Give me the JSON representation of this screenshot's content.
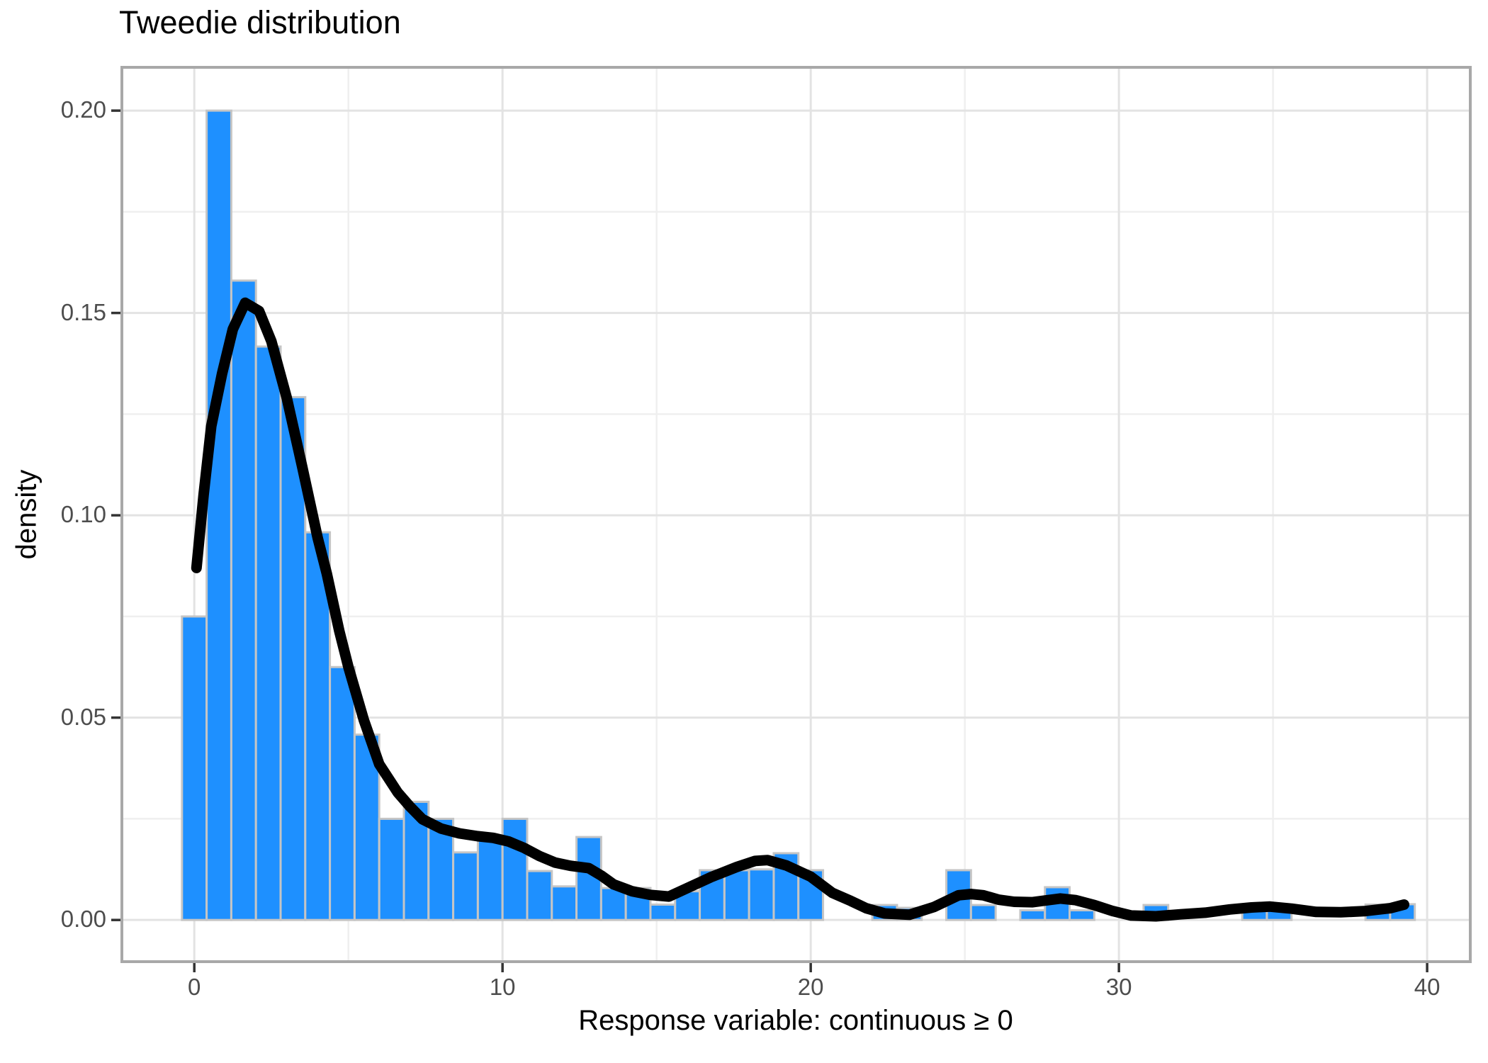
{
  "title": "Tweedie distribution",
  "x_axis": {
    "title": "Response variable: continuous ≥ 0",
    "tick_labels": [
      "0",
      "10",
      "20",
      "30",
      "40"
    ],
    "tick_values": [
      0,
      10,
      20,
      30,
      40
    ],
    "minor_tick_values": [
      5,
      15,
      25,
      35
    ]
  },
  "y_axis": {
    "title": "density",
    "tick_labels": [
      "0.00",
      "0.05",
      "0.10",
      "0.15",
      "0.20"
    ],
    "tick_values": [
      0,
      0.05,
      0.1,
      0.15,
      0.2
    ],
    "minor_tick_values": [
      0.025,
      0.075,
      0.125,
      0.175
    ]
  },
  "colors": {
    "bar_fill": "#1E90FF",
    "bar_stroke": "#C5C5C5",
    "curve": "#000000",
    "grid_major": "#E3E3E3",
    "grid_minor": "#EFEFEF",
    "panel_border": "#A8A8A8",
    "tick_mark": "#333333",
    "tick_label": "#4D4D4D",
    "background": "#FFFFFF"
  },
  "chart_data": {
    "type": "bar",
    "subtype": "histogram_with_density_overlay",
    "title": "Tweedie distribution",
    "xlabel": "Response variable: continuous ≥ 0",
    "ylabel": "density",
    "xlim": [
      -2.35,
      41.4
    ],
    "ylim": [
      -0.0103,
      0.2107
    ],
    "grid": true,
    "legend": false,
    "bin_width": 0.8,
    "bars_note": "pairs of [bin_center, density]; bins not listed have density 0",
    "bars": [
      [
        0.0,
        0.075
      ],
      [
        0.8,
        0.2
      ],
      [
        1.6,
        0.158
      ],
      [
        2.4,
        0.1417
      ],
      [
        3.2,
        0.1292
      ],
      [
        4.0,
        0.0958
      ],
      [
        4.8,
        0.0625
      ],
      [
        5.6,
        0.0458
      ],
      [
        6.4,
        0.025
      ],
      [
        7.2,
        0.0292
      ],
      [
        8.0,
        0.025
      ],
      [
        8.8,
        0.0167
      ],
      [
        9.6,
        0.0196
      ],
      [
        10.4,
        0.025
      ],
      [
        11.2,
        0.0121
      ],
      [
        12.0,
        0.0083
      ],
      [
        12.8,
        0.0205
      ],
      [
        13.6,
        0.0079
      ],
      [
        14.4,
        0.0079
      ],
      [
        15.2,
        0.0038
      ],
      [
        16.0,
        0.0071
      ],
      [
        16.8,
        0.0123
      ],
      [
        17.6,
        0.0123
      ],
      [
        18.4,
        0.0125
      ],
      [
        19.2,
        0.0165
      ],
      [
        20.0,
        0.0123
      ],
      [
        22.4,
        0.0037
      ],
      [
        23.2,
        0.003
      ],
      [
        24.8,
        0.0123
      ],
      [
        25.6,
        0.0037
      ],
      [
        27.2,
        0.0024
      ],
      [
        28.0,
        0.0081
      ],
      [
        28.8,
        0.0024
      ],
      [
        31.2,
        0.0037
      ],
      [
        34.4,
        0.0037
      ],
      [
        35.2,
        0.0037
      ],
      [
        38.4,
        0.0038
      ],
      [
        39.2,
        0.0039
      ]
    ],
    "density_curve": [
      [
        0.07,
        0.087
      ],
      [
        0.3,
        0.105
      ],
      [
        0.55,
        0.122
      ],
      [
        0.9,
        0.135
      ],
      [
        1.25,
        0.146
      ],
      [
        1.65,
        0.1525
      ],
      [
        2.1,
        0.1505
      ],
      [
        2.5,
        0.143
      ],
      [
        3.0,
        0.129
      ],
      [
        3.5,
        0.112
      ],
      [
        4.0,
        0.0945
      ],
      [
        4.3,
        0.0855
      ],
      [
        4.7,
        0.0715
      ],
      [
        5.0,
        0.0625
      ],
      [
        5.5,
        0.0494
      ],
      [
        6.0,
        0.0385
      ],
      [
        6.6,
        0.0315
      ],
      [
        7.0,
        0.028
      ],
      [
        7.4,
        0.0249
      ],
      [
        8.0,
        0.0226
      ],
      [
        8.6,
        0.0214
      ],
      [
        9.2,
        0.0207
      ],
      [
        9.7,
        0.0203
      ],
      [
        10.2,
        0.0194
      ],
      [
        10.7,
        0.0178
      ],
      [
        11.2,
        0.0158
      ],
      [
        11.7,
        0.0142
      ],
      [
        12.2,
        0.0134
      ],
      [
        12.8,
        0.0128
      ],
      [
        13.2,
        0.011
      ],
      [
        13.6,
        0.0088
      ],
      [
        14.2,
        0.0071
      ],
      [
        14.8,
        0.0062
      ],
      [
        15.4,
        0.0058
      ],
      [
        16.0,
        0.0079
      ],
      [
        16.8,
        0.0107
      ],
      [
        17.6,
        0.0131
      ],
      [
        18.2,
        0.0146
      ],
      [
        18.6,
        0.0148
      ],
      [
        19.2,
        0.0135
      ],
      [
        20.0,
        0.0107
      ],
      [
        20.7,
        0.0067
      ],
      [
        21.3,
        0.0047
      ],
      [
        21.8,
        0.0029
      ],
      [
        22.4,
        0.0016
      ],
      [
        23.2,
        0.0013
      ],
      [
        24.0,
        0.0032
      ],
      [
        24.8,
        0.0061
      ],
      [
        25.2,
        0.0064
      ],
      [
        25.6,
        0.0061
      ],
      [
        26.1,
        0.005
      ],
      [
        26.6,
        0.0045
      ],
      [
        27.2,
        0.0044
      ],
      [
        27.7,
        0.0049
      ],
      [
        28.1,
        0.0053
      ],
      [
        28.6,
        0.0049
      ],
      [
        29.2,
        0.0037
      ],
      [
        29.8,
        0.0022
      ],
      [
        30.4,
        0.0011
      ],
      [
        31.2,
        0.0009
      ],
      [
        32.0,
        0.0014
      ],
      [
        32.8,
        0.0018
      ],
      [
        33.6,
        0.0026
      ],
      [
        34.3,
        0.0031
      ],
      [
        34.9,
        0.0033
      ],
      [
        35.6,
        0.0028
      ],
      [
        36.4,
        0.002
      ],
      [
        37.2,
        0.0019
      ],
      [
        38.0,
        0.0022
      ],
      [
        38.8,
        0.0029
      ],
      [
        39.25,
        0.0038
      ]
    ]
  }
}
